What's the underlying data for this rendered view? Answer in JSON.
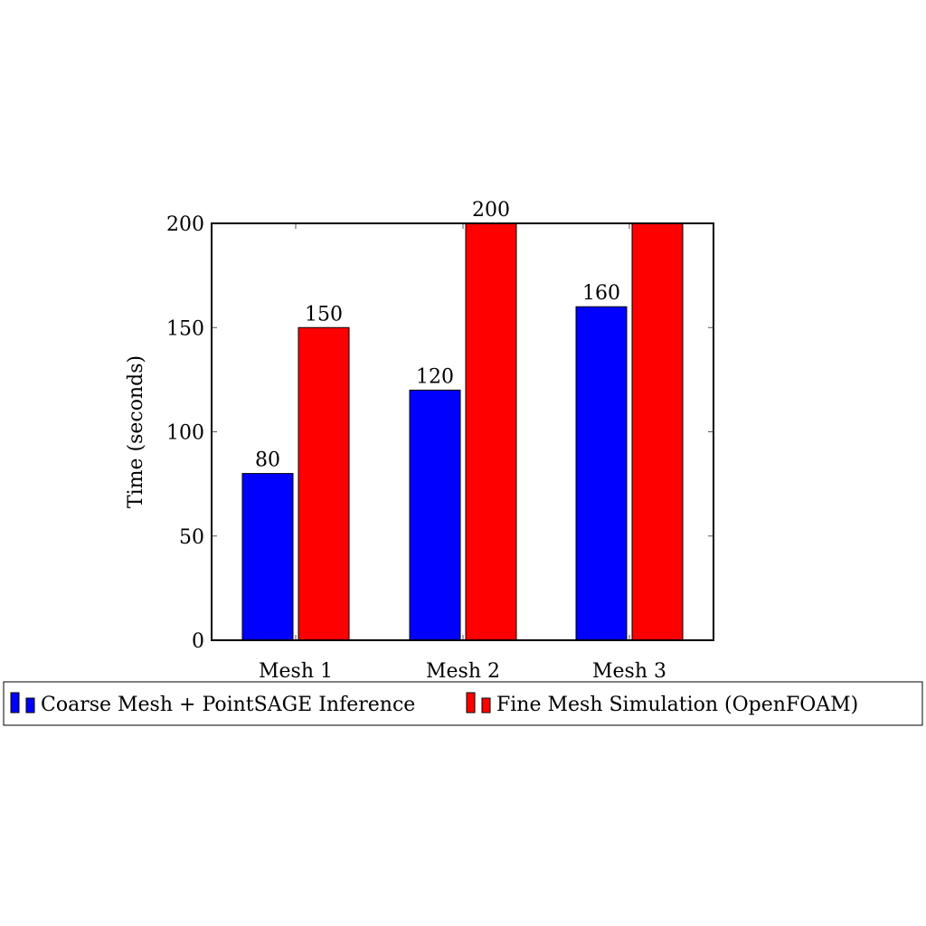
{
  "chart_data": {
    "type": "bar",
    "categories": [
      "Mesh 1",
      "Mesh 2",
      "Mesh 3"
    ],
    "series": [
      {
        "name": "Coarse Mesh + PointSAGE Inference",
        "color": "#0000ff",
        "values": [
          80,
          120,
          160
        ],
        "data_labels": [
          "80",
          "120",
          "160"
        ]
      },
      {
        "name": "Fine Mesh Simulation (OpenFOAM)",
        "color": "#ff0000",
        "values": [
          150,
          200,
          200
        ],
        "data_labels": [
          "150",
          "200",
          ""
        ]
      }
    ],
    "title": "",
    "xlabel": "",
    "ylabel": "Time (seconds)",
    "ylim": [
      0,
      200
    ],
    "yticks": [
      0,
      50,
      100,
      150,
      200
    ],
    "grid": false,
    "legend_position": "bottom"
  }
}
